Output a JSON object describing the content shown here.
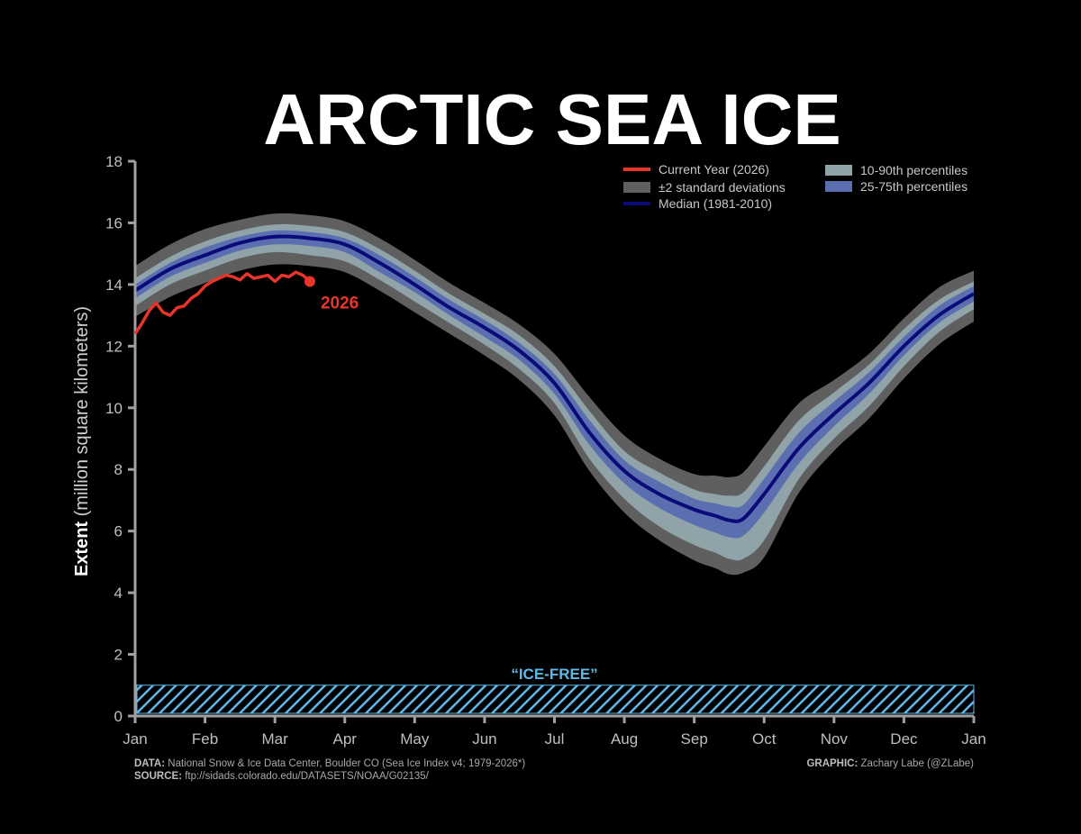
{
  "chart_data": {
    "type": "area",
    "title": "ARCTIC SEA ICE",
    "ylabel_bold": "Extent",
    "ylabel_rest": " (million square kilometers)",
    "xlabel": "",
    "ylim": [
      0,
      18
    ],
    "y_ticks": [
      0,
      2,
      4,
      6,
      8,
      10,
      12,
      14,
      16,
      18
    ],
    "x_ticks": [
      "Jan",
      "Feb",
      "Mar",
      "Apr",
      "May",
      "Jun",
      "Jul",
      "Aug",
      "Sep",
      "Oct",
      "Nov",
      "Dec",
      "Jan"
    ],
    "x_unit": "month (0 = Jan 1, 12 = next Jan 1)",
    "legend": {
      "current": "Current Year (2026)",
      "std": "±2 standard deviations",
      "median": "Median (1981-2010)",
      "p10_90": "10-90th percentiles",
      "p25_75": "25-75th percentiles"
    },
    "colors": {
      "current": "#e8352a",
      "std": "#5f5f5f",
      "p10_90": "#8fa3a8",
      "p25_75": "#5b6fb0",
      "median": "#0a0a78",
      "ice_free": "#5fb8e8",
      "axis": "#a0a0a0"
    },
    "median": {
      "x": [
        0,
        0.5,
        1,
        1.5,
        2,
        2.5,
        3,
        3.5,
        4,
        4.5,
        5,
        5.5,
        6,
        6.5,
        7,
        7.5,
        8,
        8.3,
        8.5,
        8.7,
        9,
        9.5,
        10,
        10.5,
        11,
        11.5,
        12
      ],
      "values": [
        13.8,
        14.5,
        14.95,
        15.35,
        15.55,
        15.5,
        15.3,
        14.7,
        14.0,
        13.25,
        12.6,
        11.85,
        10.8,
        9.2,
        7.95,
        7.2,
        6.7,
        6.5,
        6.35,
        6.4,
        7.2,
        8.7,
        9.8,
        10.8,
        12.0,
        13.0,
        13.7
      ]
    },
    "band_10_90": {
      "upper": [
        14.2,
        14.9,
        15.4,
        15.75,
        15.95,
        15.9,
        15.7,
        15.15,
        14.45,
        13.7,
        13.05,
        12.35,
        11.35,
        9.9,
        8.6,
        7.9,
        7.35,
        7.2,
        7.15,
        7.25,
        8.1,
        9.6,
        10.5,
        11.4,
        12.55,
        13.5,
        14.1
      ],
      "lower": [
        13.3,
        14.0,
        14.45,
        14.85,
        15.05,
        14.95,
        14.75,
        14.15,
        13.45,
        12.75,
        12.05,
        11.25,
        10.15,
        8.35,
        7.05,
        6.15,
        5.55,
        5.3,
        5.1,
        5.1,
        5.7,
        7.7,
        9.0,
        10.05,
        11.35,
        12.45,
        13.2
      ]
    },
    "band_25_75": {
      "upper": [
        14.0,
        14.7,
        15.2,
        15.55,
        15.75,
        15.7,
        15.5,
        14.95,
        14.25,
        13.5,
        12.85,
        12.1,
        11.1,
        9.6,
        8.3,
        7.6,
        7.05,
        6.9,
        6.8,
        6.85,
        7.7,
        9.2,
        10.2,
        11.15,
        12.3,
        13.3,
        13.95
      ],
      "lower": [
        13.55,
        14.25,
        14.7,
        15.1,
        15.3,
        15.25,
        15.05,
        14.4,
        13.75,
        13.0,
        12.3,
        11.55,
        10.45,
        8.8,
        7.55,
        6.75,
        6.2,
        5.95,
        5.8,
        5.85,
        6.6,
        8.2,
        9.4,
        10.45,
        11.7,
        12.75,
        13.45
      ]
    },
    "band_2std": {
      "upper": [
        14.6,
        15.3,
        15.8,
        16.1,
        16.3,
        16.25,
        16.05,
        15.5,
        14.8,
        14.05,
        13.4,
        12.7,
        11.75,
        10.35,
        9.1,
        8.35,
        7.85,
        7.8,
        7.75,
        7.9,
        8.75,
        10.15,
        10.9,
        11.75,
        12.9,
        13.9,
        14.45
      ],
      "lower": [
        12.95,
        13.6,
        14.05,
        14.45,
        14.65,
        14.6,
        14.4,
        13.8,
        13.1,
        12.4,
        11.7,
        10.9,
        9.75,
        7.95,
        6.6,
        5.7,
        5.05,
        4.8,
        4.6,
        4.65,
        5.15,
        7.25,
        8.6,
        9.65,
        10.95,
        12.05,
        12.8
      ]
    },
    "current_year": {
      "label": "2026",
      "x": [
        0,
        0.1,
        0.2,
        0.3,
        0.4,
        0.5,
        0.6,
        0.7,
        0.8,
        0.9,
        1.0,
        1.1,
        1.2,
        1.3,
        1.4,
        1.5,
        1.6,
        1.7,
        1.8,
        1.9,
        2.0,
        2.1,
        2.2,
        2.3,
        2.4,
        2.5
      ],
      "values": [
        12.4,
        12.75,
        13.15,
        13.4,
        13.1,
        13.0,
        13.25,
        13.3,
        13.55,
        13.7,
        13.95,
        14.1,
        14.2,
        14.3,
        14.25,
        14.15,
        14.35,
        14.2,
        14.25,
        14.3,
        14.1,
        14.3,
        14.25,
        14.4,
        14.3,
        14.1
      ]
    },
    "ice_free": {
      "label": "“ICE-FREE”",
      "threshold": 1
    }
  },
  "credits": {
    "data_label": "DATA:",
    "data_text": "National Snow & Ice Data Center, Boulder CO (Sea Ice Index v4; 1979-2026*)",
    "source_label": "SOURCE:",
    "source_text": "ftp://sidads.colorado.edu/DATASETS/NOAA/G02135/",
    "graphic_label": "GRAPHIC:",
    "graphic_text": "Zachary Labe (@ZLabe)"
  }
}
